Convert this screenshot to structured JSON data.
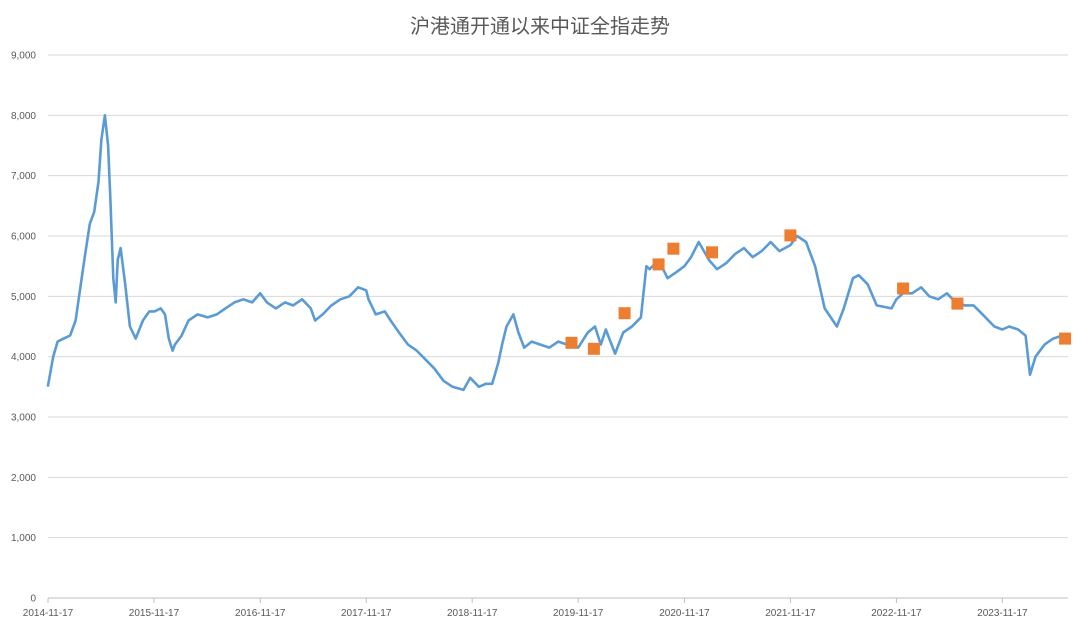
{
  "chart_data": {
    "type": "line",
    "title": "沪港通开通以来中证全指走势",
    "xlabel": "",
    "ylabel": "",
    "ylim": [
      0,
      9000
    ],
    "yticks": [
      0,
      1000,
      2000,
      3000,
      4000,
      5000,
      6000,
      7000,
      8000,
      9000
    ],
    "ytick_labels": [
      "0",
      "1,000",
      "2,000",
      "3,000",
      "4,000",
      "5,000",
      "6,000",
      "7,000",
      "8,000",
      "9,000"
    ],
    "xlim": [
      "2014-11-17",
      "2024-06-30"
    ],
    "xticks": [
      "2014-11-17",
      "2015-11-17",
      "2016-11-17",
      "2017-11-17",
      "2018-11-17",
      "2019-11-17",
      "2020-11-17",
      "2021-11-17",
      "2022-11-17",
      "2023-11-17"
    ],
    "grid": true,
    "legend": "none",
    "line_color": "#5B9BD5",
    "marker_color": "#ED7D31",
    "series": [
      {
        "type": "line",
        "x": [
          "2014-11-17",
          "2014-12-05",
          "2014-12-20",
          "2015-01-10",
          "2015-02-01",
          "2015-02-20",
          "2015-03-10",
          "2015-03-25",
          "2015-04-10",
          "2015-04-25",
          "2015-05-10",
          "2015-05-20",
          "2015-06-01",
          "2015-06-12",
          "2015-06-20",
          "2015-06-30",
          "2015-07-08",
          "2015-07-15",
          "2015-07-25",
          "2015-08-10",
          "2015-08-26",
          "2015-09-15",
          "2015-10-10",
          "2015-11-01",
          "2015-11-20",
          "2015-12-10",
          "2015-12-25",
          "2016-01-07",
          "2016-01-20",
          "2016-01-28",
          "2016-02-20",
          "2016-03-15",
          "2016-04-15",
          "2016-05-20",
          "2016-06-20",
          "2016-07-20",
          "2016-08-20",
          "2016-09-20",
          "2016-10-20",
          "2016-11-17",
          "2016-12-10",
          "2017-01-10",
          "2017-02-10",
          "2017-03-10",
          "2017-04-10",
          "2017-05-10",
          "2017-05-25",
          "2017-06-20",
          "2017-07-20",
          "2017-08-20",
          "2017-09-20",
          "2017-10-20",
          "2017-11-17",
          "2017-11-25",
          "2017-12-20",
          "2018-01-20",
          "2018-02-09",
          "2018-03-10",
          "2018-04-10",
          "2018-05-10",
          "2018-06-20",
          "2018-07-10",
          "2018-08-10",
          "2018-09-10",
          "2018-10-18",
          "2018-11-10",
          "2018-12-10",
          "2019-01-03",
          "2019-01-25",
          "2019-02-15",
          "2019-02-28",
          "2019-03-15",
          "2019-04-08",
          "2019-04-25",
          "2019-05-15",
          "2019-06-10",
          "2019-07-10",
          "2019-08-10",
          "2019-09-10",
          "2019-10-10",
          "2019-11-17",
          "2019-12-20",
          "2020-01-14",
          "2020-02-03",
          "2020-02-20",
          "2020-03-23",
          "2020-04-20",
          "2020-05-20",
          "2020-06-20",
          "2020-07-09",
          "2020-07-20",
          "2020-08-20",
          "2020-09-20",
          "2020-10-20",
          "2020-11-17",
          "2020-12-10",
          "2021-01-05",
          "2021-02-10",
          "2021-03-09",
          "2021-04-10",
          "2021-05-10",
          "2021-06-10",
          "2021-07-10",
          "2021-08-10",
          "2021-09-10",
          "2021-10-10",
          "2021-11-17",
          "2021-12-10",
          "2022-01-10",
          "2022-02-10",
          "2022-03-15",
          "2022-04-26",
          "2022-05-20",
          "2022-06-20",
          "2022-07-10",
          "2022-08-10",
          "2022-09-10",
          "2022-10-31",
          "2022-11-17",
          "2022-12-10",
          "2023-01-10",
          "2023-02-10",
          "2023-03-10",
          "2023-04-10",
          "2023-05-10",
          "2023-06-10",
          "2023-07-10",
          "2023-08-10",
          "2023-09-10",
          "2023-10-20",
          "2023-11-17",
          "2023-12-10",
          "2024-01-10",
          "2024-02-05",
          "2024-02-20",
          "2024-03-10",
          "2024-04-10",
          "2024-05-10",
          "2024-06-10",
          "2024-06-30"
        ],
        "values": [
          3520,
          4000,
          4250,
          4300,
          4350,
          4600,
          5200,
          5700,
          6200,
          6400,
          6900,
          7600,
          8000,
          7500,
          6600,
          5300,
          4900,
          5600,
          5800,
          5200,
          4500,
          4300,
          4600,
          4750,
          4750,
          4800,
          4700,
          4300,
          4100,
          4200,
          4350,
          4600,
          4700,
          4650,
          4700,
          4800,
          4900,
          4950,
          4900,
          5050,
          4900,
          4800,
          4900,
          4850,
          4950,
          4800,
          4600,
          4700,
          4850,
          4950,
          5000,
          5150,
          5100,
          4950,
          4700,
          4750,
          4600,
          4400,
          4200,
          4100,
          3900,
          3800,
          3600,
          3500,
          3450,
          3650,
          3500,
          3550,
          3550,
          3900,
          4200,
          4500,
          4700,
          4400,
          4150,
          4250,
          4200,
          4150,
          4250,
          4200,
          4150,
          4400,
          4500,
          4200,
          4450,
          4050,
          4400,
          4500,
          4650,
          5500,
          5450,
          5600,
          5300,
          5400,
          5500,
          5650,
          5900,
          5600,
          5450,
          5550,
          5700,
          5800,
          5650,
          5750,
          5900,
          5750,
          5850,
          6000,
          5900,
          5500,
          4800,
          4500,
          4800,
          5300,
          5350,
          5200,
          4850,
          4800,
          4950,
          5050,
          5050,
          5150,
          5000,
          4950,
          5050,
          4900,
          4850,
          4850,
          4700,
          4500,
          4450,
          4500,
          4450,
          4350,
          3700,
          4000,
          4200,
          4300,
          4350,
          4300
        ]
      },
      {
        "type": "scatter",
        "x": [
          "2019-10-25",
          "2020-01-10",
          "2020-04-25",
          "2020-08-20",
          "2020-10-10",
          "2021-02-20",
          "2021-11-17",
          "2022-12-10",
          "2023-06-15",
          "2024-06-20"
        ],
        "values": [
          4230,
          4130,
          4720,
          5530,
          5790,
          5730,
          6010,
          5130,
          4880,
          4300
        ]
      }
    ]
  }
}
